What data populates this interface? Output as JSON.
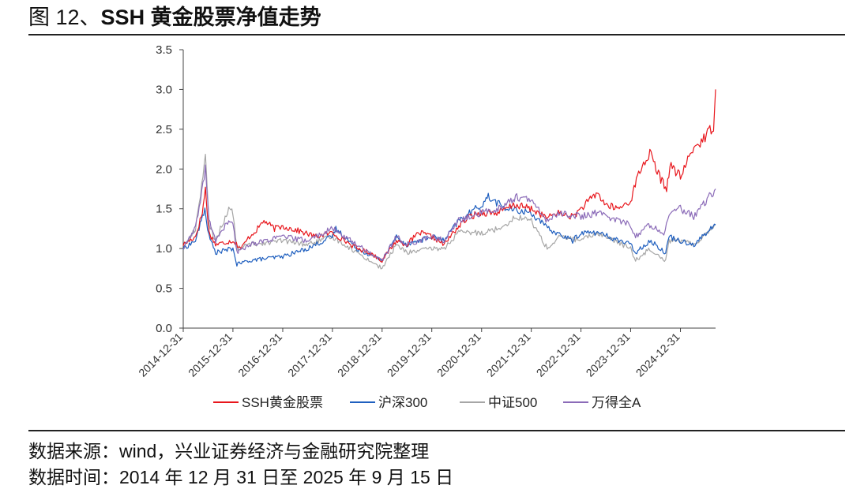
{
  "figure": {
    "label": "图 12、",
    "title": "SSH 黄金股票净值走势"
  },
  "footer": {
    "source": "数据来源：wind，兴业证券经济与金融研究院整理",
    "date": "数据时间：2014 年 12 月 31 日至 2025 年 9 月 15 日"
  },
  "colors": {
    "ssh": "#e8161c",
    "hs300": "#1f5fbf",
    "zz500": "#a6a6a6",
    "wind_a": "#8b6bb8",
    "axis": "#444444"
  },
  "chart_data": {
    "type": "line",
    "ylim": [
      0.0,
      3.5
    ],
    "yticks": [
      "0.0",
      "0.5",
      "1.0",
      "1.5",
      "2.0",
      "2.5",
      "3.0",
      "3.5"
    ],
    "xticks": [
      "2014-12-31",
      "2015-12-31",
      "2016-12-31",
      "2017-12-31",
      "2018-12-31",
      "2019-12-31",
      "2020-12-31",
      "2021-12-31",
      "2022-12-31",
      "2023-12-31",
      "2024-12-31"
    ],
    "x_end": "2025-09-15",
    "grid": false,
    "legend": "bottom",
    "series": [
      {
        "name": "SSH黄金股票",
        "color_key": "ssh",
        "points": [
          [
            "2014-12-31",
            1.05
          ],
          [
            "2015-03-31",
            1.15
          ],
          [
            "2015-05-20",
            1.45
          ],
          [
            "2015-06-12",
            1.75
          ],
          [
            "2015-07-08",
            1.2
          ],
          [
            "2015-08-26",
            1.05
          ],
          [
            "2015-12-31",
            1.1
          ],
          [
            "2016-02-29",
            1.0
          ],
          [
            "2016-04-30",
            1.15
          ],
          [
            "2016-06-30",
            1.25
          ],
          [
            "2016-08-15",
            1.35
          ],
          [
            "2016-10-31",
            1.25
          ],
          [
            "2016-12-31",
            1.28
          ],
          [
            "2017-04-30",
            1.22
          ],
          [
            "2017-08-31",
            1.15
          ],
          [
            "2017-12-31",
            1.2
          ],
          [
            "2018-03-31",
            1.1
          ],
          [
            "2018-06-30",
            1.0
          ],
          [
            "2018-09-30",
            0.95
          ],
          [
            "2018-12-31",
            0.85
          ],
          [
            "2019-04-15",
            1.1
          ],
          [
            "2019-06-30",
            1.05
          ],
          [
            "2019-09-30",
            1.2
          ],
          [
            "2019-12-31",
            1.15
          ],
          [
            "2020-03-31",
            1.05
          ],
          [
            "2020-06-30",
            1.25
          ],
          [
            "2020-09-30",
            1.4
          ],
          [
            "2020-12-31",
            1.45
          ],
          [
            "2021-04-30",
            1.45
          ],
          [
            "2021-08-31",
            1.55
          ],
          [
            "2021-12-31",
            1.5
          ],
          [
            "2022-04-30",
            1.38
          ],
          [
            "2022-06-30",
            1.45
          ],
          [
            "2022-10-31",
            1.4
          ],
          [
            "2022-12-31",
            1.5
          ],
          [
            "2023-04-30",
            1.7
          ],
          [
            "2023-06-30",
            1.55
          ],
          [
            "2023-09-30",
            1.5
          ],
          [
            "2023-12-31",
            1.6
          ],
          [
            "2024-02-28",
            1.95
          ],
          [
            "2024-05-20",
            2.2
          ],
          [
            "2024-07-31",
            1.9
          ],
          [
            "2024-09-20",
            1.75
          ],
          [
            "2024-10-15",
            2.05
          ],
          [
            "2024-12-31",
            1.9
          ],
          [
            "2025-03-31",
            2.25
          ],
          [
            "2025-06-30",
            2.4
          ],
          [
            "2025-08-31",
            2.55
          ],
          [
            "2025-09-15",
            3.0
          ]
        ]
      },
      {
        "name": "沪深300",
        "color_key": "hs300",
        "points": [
          [
            "2014-12-31",
            1.0
          ],
          [
            "2015-03-31",
            1.1
          ],
          [
            "2015-06-08",
            1.5
          ],
          [
            "2015-07-08",
            1.15
          ],
          [
            "2015-08-26",
            0.95
          ],
          [
            "2015-12-31",
            1.0
          ],
          [
            "2016-01-29",
            0.8
          ],
          [
            "2016-04-30",
            0.85
          ],
          [
            "2016-12-31",
            0.9
          ],
          [
            "2017-06-30",
            1.0
          ],
          [
            "2017-12-31",
            1.15
          ],
          [
            "2018-01-25",
            1.25
          ],
          [
            "2018-06-30",
            1.0
          ],
          [
            "2018-12-31",
            0.85
          ],
          [
            "2019-04-15",
            1.15
          ],
          [
            "2019-06-30",
            1.05
          ],
          [
            "2019-12-31",
            1.15
          ],
          [
            "2020-03-31",
            1.1
          ],
          [
            "2020-07-15",
            1.35
          ],
          [
            "2020-12-31",
            1.55
          ],
          [
            "2021-02-18",
            1.65
          ],
          [
            "2021-06-30",
            1.5
          ],
          [
            "2021-12-31",
            1.45
          ],
          [
            "2022-04-30",
            1.25
          ],
          [
            "2022-10-31",
            1.1
          ],
          [
            "2022-12-31",
            1.2
          ],
          [
            "2023-04-30",
            1.2
          ],
          [
            "2023-12-31",
            1.05
          ],
          [
            "2024-02-05",
            0.95
          ],
          [
            "2024-05-20",
            1.1
          ],
          [
            "2024-09-13",
            0.95
          ],
          [
            "2024-10-08",
            1.15
          ],
          [
            "2024-12-31",
            1.1
          ],
          [
            "2025-04-08",
            1.05
          ],
          [
            "2025-09-15",
            1.3
          ]
        ]
      },
      {
        "name": "中证500",
        "color_key": "zz500",
        "points": [
          [
            "2014-12-31",
            1.0
          ],
          [
            "2015-03-31",
            1.25
          ],
          [
            "2015-06-12",
            2.15
          ],
          [
            "2015-07-08",
            1.3
          ],
          [
            "2015-08-26",
            1.1
          ],
          [
            "2015-11-30",
            1.5
          ],
          [
            "2015-12-31",
            1.45
          ],
          [
            "2016-01-29",
            1.0
          ],
          [
            "2016-04-30",
            1.05
          ],
          [
            "2016-12-31",
            1.1
          ],
          [
            "2017-06-30",
            1.05
          ],
          [
            "2017-12-31",
            1.15
          ],
          [
            "2018-06-30",
            0.95
          ],
          [
            "2018-12-31",
            0.75
          ],
          [
            "2019-04-15",
            1.05
          ],
          [
            "2019-06-30",
            0.95
          ],
          [
            "2019-12-31",
            1.0
          ],
          [
            "2020-03-31",
            1.0
          ],
          [
            "2020-07-15",
            1.2
          ],
          [
            "2020-12-31",
            1.2
          ],
          [
            "2021-04-30",
            1.25
          ],
          [
            "2021-09-15",
            1.4
          ],
          [
            "2021-12-31",
            1.35
          ],
          [
            "2022-04-27",
            1.0
          ],
          [
            "2022-07-31",
            1.15
          ],
          [
            "2022-12-31",
            1.1
          ],
          [
            "2023-04-30",
            1.2
          ],
          [
            "2023-12-31",
            1.0
          ],
          [
            "2024-02-05",
            0.85
          ],
          [
            "2024-05-20",
            1.0
          ],
          [
            "2024-09-13",
            0.85
          ],
          [
            "2024-10-08",
            1.1
          ],
          [
            "2024-12-31",
            1.1
          ],
          [
            "2025-04-08",
            1.05
          ],
          [
            "2025-09-15",
            1.3
          ]
        ]
      },
      {
        "name": "万得全A",
        "color_key": "wind_a",
        "points": [
          [
            "2014-12-31",
            1.0
          ],
          [
            "2015-03-31",
            1.25
          ],
          [
            "2015-06-12",
            2.0
          ],
          [
            "2015-07-08",
            1.35
          ],
          [
            "2015-08-26",
            1.1
          ],
          [
            "2015-11-30",
            1.35
          ],
          [
            "2015-12-31",
            1.3
          ],
          [
            "2016-01-29",
            0.95
          ],
          [
            "2016-04-30",
            1.05
          ],
          [
            "2016-12-31",
            1.15
          ],
          [
            "2017-06-30",
            1.1
          ],
          [
            "2017-12-31",
            1.25
          ],
          [
            "2018-06-30",
            1.05
          ],
          [
            "2018-12-31",
            0.85
          ],
          [
            "2019-04-15",
            1.15
          ],
          [
            "2019-06-30",
            1.05
          ],
          [
            "2019-12-31",
            1.15
          ],
          [
            "2020-03-31",
            1.1
          ],
          [
            "2020-07-15",
            1.35
          ],
          [
            "2020-12-31",
            1.45
          ],
          [
            "2021-04-30",
            1.5
          ],
          [
            "2021-09-15",
            1.65
          ],
          [
            "2021-12-31",
            1.6
          ],
          [
            "2022-04-27",
            1.35
          ],
          [
            "2022-07-31",
            1.45
          ],
          [
            "2022-12-31",
            1.4
          ],
          [
            "2023-04-30",
            1.45
          ],
          [
            "2023-12-31",
            1.3
          ],
          [
            "2024-02-05",
            1.15
          ],
          [
            "2024-05-20",
            1.3
          ],
          [
            "2024-08-31",
            1.2
          ],
          [
            "2024-10-08",
            1.45
          ],
          [
            "2024-12-31",
            1.5
          ],
          [
            "2025-04-08",
            1.4
          ],
          [
            "2025-09-15",
            1.75
          ]
        ]
      }
    ]
  }
}
